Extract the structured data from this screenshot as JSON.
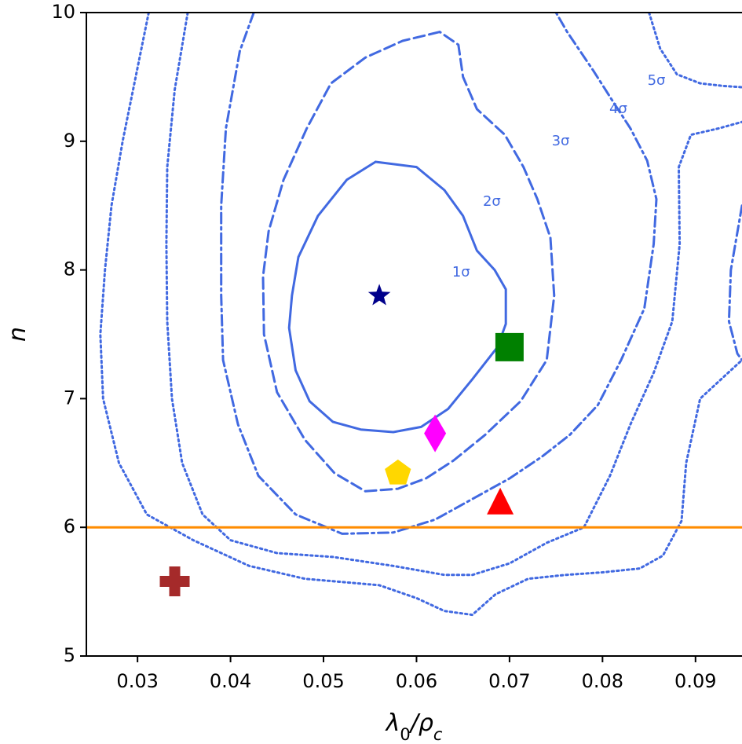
{
  "chart_data": {
    "type": "scatter",
    "xlabel": "λ₀/ρ_c",
    "ylabel": "n",
    "xlim": [
      0.0245,
      0.095
    ],
    "ylim": [
      5,
      10
    ],
    "xticks": [
      0.03,
      0.04,
      0.05,
      0.06,
      0.07,
      0.08,
      0.09
    ],
    "xtick_labels": [
      "0.03",
      "0.04",
      "0.05",
      "0.06",
      "0.07",
      "0.08",
      "0.09"
    ],
    "yticks": [
      5,
      6,
      7,
      8,
      9,
      10
    ],
    "ytick_labels": [
      "5",
      "6",
      "7",
      "8",
      "9",
      "10"
    ],
    "grid": false,
    "colors": {
      "contour": "#4169e1",
      "hline": "#ff8c00"
    },
    "hline": {
      "y": 6.0
    },
    "contours": [
      {
        "label": "1σ",
        "label_at": [
          0.0648,
          7.98
        ],
        "style": "solid",
        "points": [
          [
            0.0556,
            8.84
          ],
          [
            0.0525,
            8.7
          ],
          [
            0.0494,
            8.42
          ],
          [
            0.0473,
            8.1
          ],
          [
            0.0466,
            7.8
          ],
          [
            0.0463,
            7.55
          ],
          [
            0.047,
            7.22
          ],
          [
            0.0485,
            6.98
          ],
          [
            0.051,
            6.82
          ],
          [
            0.054,
            6.76
          ],
          [
            0.0575,
            6.74
          ],
          [
            0.0605,
            6.78
          ],
          [
            0.0634,
            6.92
          ],
          [
            0.066,
            7.15
          ],
          [
            0.0687,
            7.4
          ],
          [
            0.0696,
            7.58
          ],
          [
            0.0696,
            7.85
          ],
          [
            0.0684,
            8.0
          ],
          [
            0.0665,
            8.15
          ],
          [
            0.065,
            8.42
          ],
          [
            0.063,
            8.62
          ],
          [
            0.06,
            8.8
          ],
          [
            0.0556,
            8.84
          ]
        ]
      },
      {
        "label": "2σ",
        "label_at": [
          0.0681,
          8.53
        ],
        "style": "dashed",
        "points": [
          [
            0.0625,
            9.85
          ],
          [
            0.0585,
            9.78
          ],
          [
            0.0545,
            9.65
          ],
          [
            0.0508,
            9.45
          ],
          [
            0.0482,
            9.1
          ],
          [
            0.0457,
            8.7
          ],
          [
            0.0441,
            8.3
          ],
          [
            0.0435,
            7.95
          ],
          [
            0.0436,
            7.5
          ],
          [
            0.045,
            7.05
          ],
          [
            0.048,
            6.68
          ],
          [
            0.0512,
            6.42
          ],
          [
            0.0545,
            6.28
          ],
          [
            0.058,
            6.3
          ],
          [
            0.061,
            6.38
          ],
          [
            0.064,
            6.52
          ],
          [
            0.0674,
            6.72
          ],
          [
            0.0712,
            6.98
          ],
          [
            0.074,
            7.3
          ],
          [
            0.0748,
            7.8
          ],
          [
            0.0744,
            8.25
          ],
          [
            0.073,
            8.55
          ],
          [
            0.0715,
            8.8
          ],
          [
            0.0695,
            9.05
          ],
          [
            0.0665,
            9.25
          ],
          [
            0.065,
            9.5
          ],
          [
            0.0645,
            9.75
          ],
          [
            0.0625,
            9.85
          ]
        ]
      },
      {
        "label": "3σ",
        "label_at": [
          0.0755,
          9.0
        ],
        "style": "dashdot",
        "points": [
          [
            0.0425,
            10.0
          ],
          [
            0.041,
            9.7
          ],
          [
            0.0395,
            9.1
          ],
          [
            0.039,
            8.5
          ],
          [
            0.039,
            7.8
          ],
          [
            0.0392,
            7.3
          ],
          [
            0.0408,
            6.8
          ],
          [
            0.043,
            6.4
          ],
          [
            0.047,
            6.1
          ],
          [
            0.052,
            5.95
          ],
          [
            0.0575,
            5.96
          ],
          [
            0.062,
            6.06
          ],
          [
            0.066,
            6.22
          ],
          [
            0.07,
            6.38
          ],
          [
            0.0735,
            6.55
          ],
          [
            0.0765,
            6.72
          ],
          [
            0.0795,
            6.95
          ],
          [
            0.082,
            7.3
          ],
          [
            0.0845,
            7.7
          ],
          [
            0.0855,
            8.2
          ],
          [
            0.0858,
            8.55
          ],
          [
            0.0848,
            8.85
          ],
          [
            0.083,
            9.1
          ],
          [
            0.0812,
            9.3
          ],
          [
            0.079,
            9.55
          ],
          [
            0.0762,
            9.85
          ],
          [
            0.075,
            10.0
          ]
        ]
      },
      {
        "label": "4σ",
        "label_at": [
          0.0817,
          9.25
        ],
        "style": "dotted",
        "points": [
          [
            0.0354,
            10.0
          ],
          [
            0.034,
            9.4
          ],
          [
            0.0332,
            8.8
          ],
          [
            0.0331,
            8.2
          ],
          [
            0.0332,
            7.6
          ],
          [
            0.0337,
            7.0
          ],
          [
            0.0348,
            6.5
          ],
          [
            0.037,
            6.1
          ],
          [
            0.04,
            5.9
          ],
          [
            0.045,
            5.8
          ],
          [
            0.051,
            5.77
          ],
          [
            0.0575,
            5.7
          ],
          [
            0.063,
            5.63
          ],
          [
            0.066,
            5.63
          ],
          [
            0.07,
            5.72
          ],
          [
            0.074,
            5.88
          ],
          [
            0.078,
            6.0
          ],
          [
            0.0808,
            6.4
          ],
          [
            0.083,
            6.8
          ],
          [
            0.0855,
            7.2
          ],
          [
            0.0875,
            7.6
          ],
          [
            0.0883,
            8.2
          ],
          [
            0.0882,
            8.8
          ],
          [
            0.0895,
            9.05
          ],
          [
            0.0925,
            9.1
          ],
          [
            0.095,
            9.15
          ]
        ]
      },
      {
        "label": "5σ",
        "label_at": [
          0.0858,
          9.47
        ],
        "style": "dotted",
        "points": [
          [
            0.0312,
            10.0
          ],
          [
            0.0298,
            9.5
          ],
          [
            0.0284,
            9.0
          ],
          [
            0.0272,
            8.5
          ],
          [
            0.0265,
            8.0
          ],
          [
            0.026,
            7.5
          ],
          [
            0.0263,
            7.0
          ],
          [
            0.028,
            6.5
          ],
          [
            0.031,
            6.1
          ],
          [
            0.036,
            5.9
          ],
          [
            0.042,
            5.7
          ],
          [
            0.048,
            5.6
          ],
          [
            0.056,
            5.55
          ],
          [
            0.06,
            5.45
          ],
          [
            0.063,
            5.35
          ],
          [
            0.066,
            5.32
          ],
          [
            0.0685,
            5.48
          ],
          [
            0.072,
            5.6
          ],
          [
            0.076,
            5.63
          ],
          [
            0.08,
            5.65
          ],
          [
            0.084,
            5.68
          ],
          [
            0.0865,
            5.78
          ],
          [
            0.0885,
            6.05
          ],
          [
            0.089,
            6.5
          ],
          [
            0.0905,
            7.0
          ],
          [
            0.0935,
            7.2
          ],
          [
            0.095,
            7.3
          ]
        ]
      },
      {
        "label": "",
        "style": "dotted",
        "points": [
          [
            0.085,
            10.0
          ],
          [
            0.0862,
            9.72
          ],
          [
            0.088,
            9.52
          ],
          [
            0.0905,
            9.45
          ],
          [
            0.093,
            9.43
          ],
          [
            0.095,
            9.42
          ]
        ]
      },
      {
        "label": "",
        "style": "dashdot",
        "points": [
          [
            0.095,
            8.5
          ],
          [
            0.0938,
            8.0
          ],
          [
            0.0936,
            7.6
          ],
          [
            0.0945,
            7.35
          ],
          [
            0.095,
            7.3
          ]
        ]
      }
    ],
    "points": [
      {
        "name": "star",
        "x": 0.056,
        "y": 7.8,
        "marker": "star",
        "color": "#00008b"
      },
      {
        "name": "square",
        "x": 0.07,
        "y": 7.4,
        "marker": "square",
        "color": "#008000"
      },
      {
        "name": "diamond",
        "x": 0.062,
        "y": 6.73,
        "marker": "diamond",
        "color": "#ff00ff"
      },
      {
        "name": "pentagon",
        "x": 0.058,
        "y": 6.42,
        "marker": "pentagon",
        "color": "#ffd700"
      },
      {
        "name": "triangle",
        "x": 0.069,
        "y": 6.18,
        "marker": "triangle",
        "color": "#ff0000"
      },
      {
        "name": "plus",
        "x": 0.034,
        "y": 5.58,
        "marker": "plus",
        "color": "#a52a2a"
      }
    ]
  }
}
